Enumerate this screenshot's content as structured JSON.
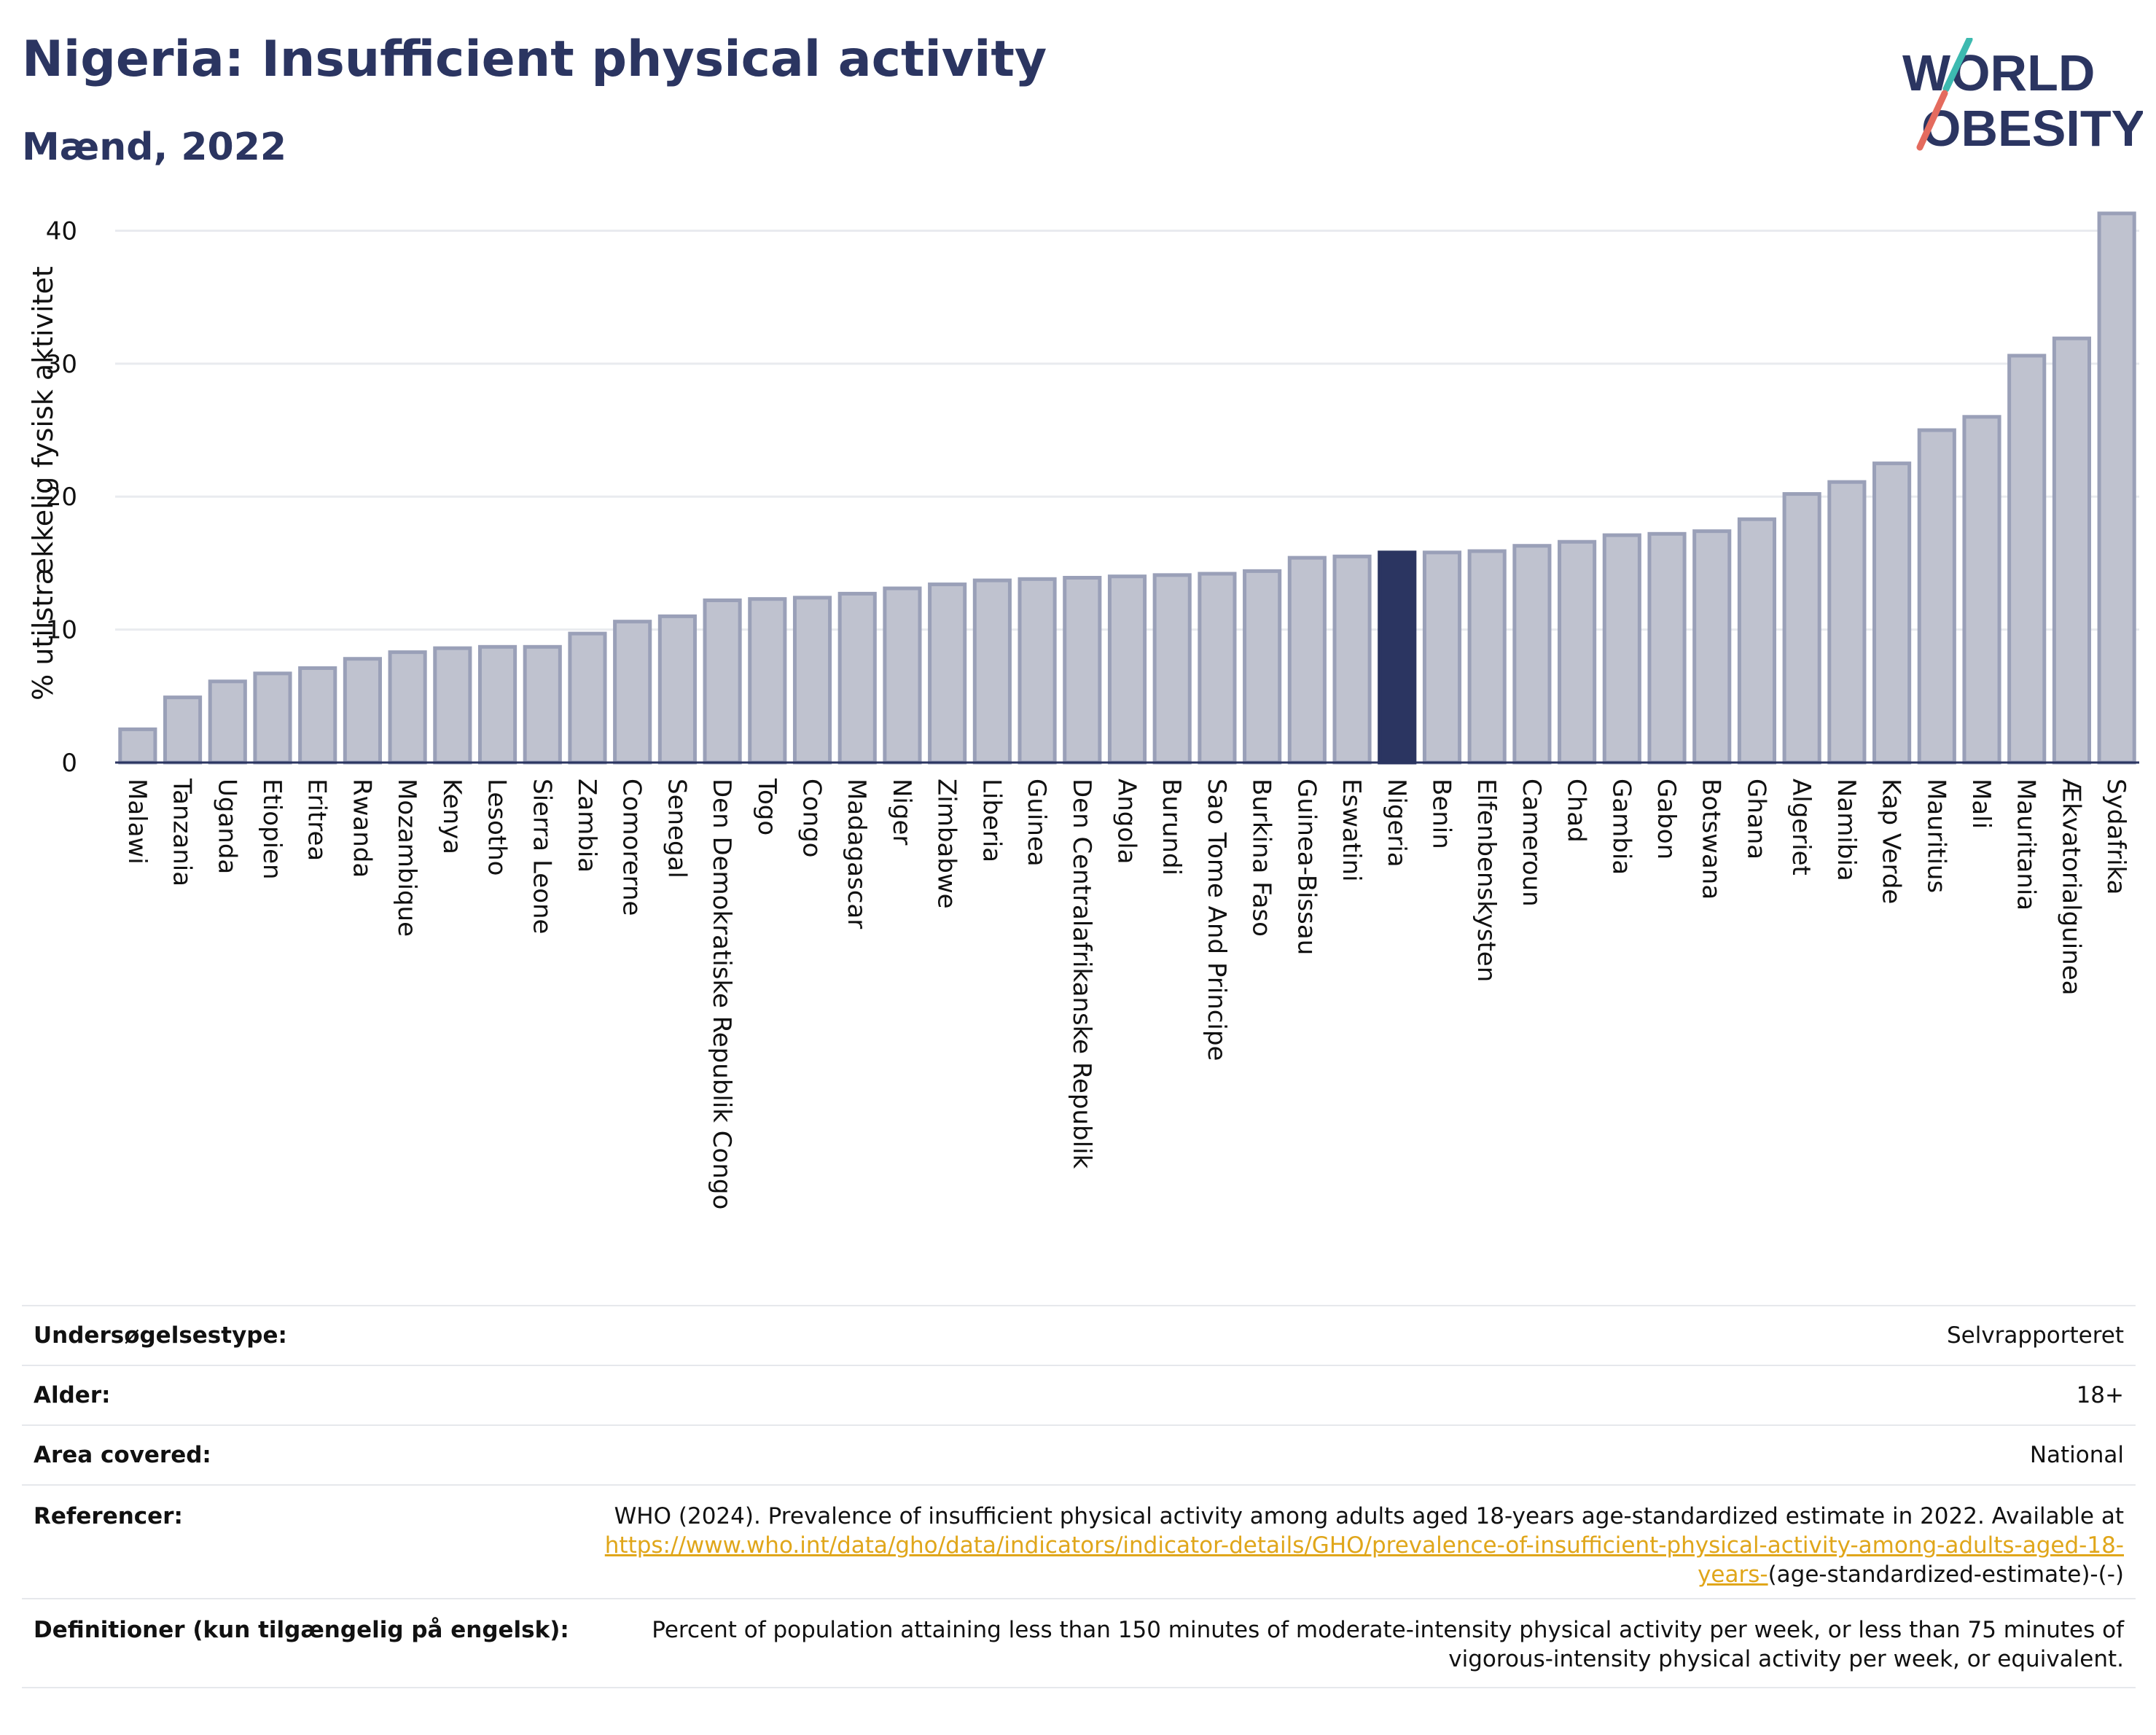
{
  "header": {
    "title": "Nigeria: Insufficient physical activity",
    "subtitle": "Mænd, 2022"
  },
  "logo": {
    "line1": "WORLD",
    "line2": "OBESITY",
    "color_text": "#2b3561",
    "color_slash_top": "#3dbab0",
    "color_slash_bottom": "#e46b5e"
  },
  "colors": {
    "bar": "#bfc2cf",
    "bar_border": "#9aa0b8",
    "highlight": "#2b3561",
    "grid": "#e9ebef"
  },
  "chart_data": {
    "type": "bar",
    "ylabel": "% utilstrækkelig fysisk aktivitet",
    "ylim": [
      0,
      42
    ],
    "yticks": [
      0,
      10,
      20,
      30,
      40
    ],
    "grid": true,
    "highlight": "Nigeria",
    "categories": [
      "Malawi",
      "Tanzania",
      "Uganda",
      "Etiopien",
      "Eritrea",
      "Rwanda",
      "Mozambique",
      "Kenya",
      "Lesotho",
      "Sierra Leone",
      "Zambia",
      "Comorerne",
      "Senegal",
      "Den Demokratiske Republik Congo",
      "Togo",
      "Congo",
      "Madagascar",
      "Niger",
      "Zimbabwe",
      "Liberia",
      "Guinea",
      "Den Centralafrikanske Republik",
      "Angola",
      "Burundi",
      "Sao Tome And Principe",
      "Burkina Faso",
      "Guinea-Bissau",
      "Eswatini",
      "Nigeria",
      "Benin",
      "Elfenbenskysten",
      "Cameroun",
      "Chad",
      "Gambia",
      "Gabon",
      "Botswana",
      "Ghana",
      "Algeriet",
      "Namibia",
      "Kap Verde",
      "Mauritius",
      "Mali",
      "Mauritania",
      "Ækvatorialguinea",
      "Sydafrika"
    ],
    "values": [
      2.5,
      4.9,
      6.1,
      6.7,
      7.1,
      7.8,
      8.3,
      8.6,
      8.7,
      8.7,
      9.7,
      10.6,
      11.0,
      12.2,
      12.3,
      12.4,
      12.7,
      13.1,
      13.4,
      13.7,
      13.8,
      13.9,
      14.0,
      14.1,
      14.2,
      14.4,
      15.4,
      15.5,
      15.8,
      15.8,
      15.9,
      16.3,
      16.6,
      17.1,
      17.2,
      17.4,
      18.3,
      20.2,
      21.1,
      22.5,
      25.0,
      26.0,
      30.6,
      31.9,
      41.3
    ]
  },
  "info": {
    "survey_label": "Undersøgelsestype:",
    "survey_value": "Selvrapporteret",
    "age_label": "Alder:",
    "age_value": "18+",
    "area_label": "Area covered:",
    "area_value": "National",
    "ref_label": "Referencer:",
    "ref_text": "WHO (2024). Prevalence of insufficient physical activity among adults aged 18-years age-standardized estimate in 2022. Available at",
    "ref_link": "https://www.who.int/data/gho/data/indicators/indicator-details/GHO/prevalence-of-insufficient-physical-activity-among-adults-aged-18-years-",
    "ref_suffix": "(age-standardized-estimate)-(-)",
    "def_label": "Definitioner (kun tilgængelig på engelsk):",
    "def_value": "Percent of population attaining less than 150 minutes of moderate-intensity physical activity per week, or less than 75 minutes of vigorous-intensity physical activity per week, or equivalent."
  }
}
